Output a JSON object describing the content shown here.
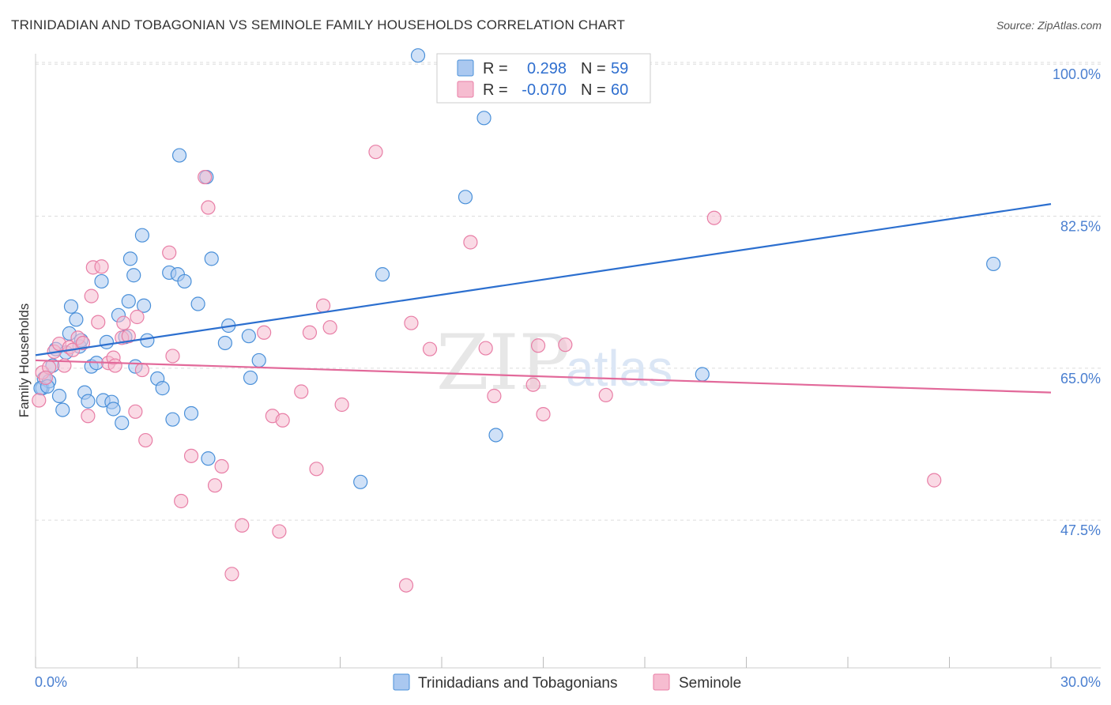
{
  "title": "TRINIDADIAN AND TOBAGONIAN VS SEMINOLE FAMILY HOUSEHOLDS CORRELATION CHART",
  "source": "Source: ZipAtlas.com",
  "watermark": {
    "zip": "ZIP",
    "atlas": "atlas"
  },
  "colors": {
    "blue": "#4a90d9",
    "blue_fill": "#aac8f0",
    "blue_line": "#2c6fcf",
    "pink": "#e87ea6",
    "pink_fill": "#f6bcd0",
    "pink_line": "#e2699a",
    "tick": "#4a7fd0",
    "grid": "#dddddd"
  },
  "legend": {
    "rows": [
      {
        "r_label": "R =",
        "r_value": "0.298",
        "n_label": "N =",
        "n_value": "59",
        "series": "blue"
      },
      {
        "r_label": "R =",
        "r_value": "-0.070",
        "n_label": "N =",
        "n_value": "60",
        "series": "pink"
      }
    ]
  },
  "bottom_legend": [
    "Trinidadians and Tobagonians",
    "Seminole"
  ],
  "chart_data": {
    "type": "scatter",
    "title": "TRINIDADIAN AND TOBAGONIAN VS SEMINOLE FAMILY HOUSEHOLDS CORRELATION CHART",
    "xlabel": "",
    "ylabel": "Family Households",
    "xlim": [
      0,
      30
    ],
    "ylim": [
      30.5,
      101.2
    ],
    "x_tick_labels": [
      "0.0%",
      "30.0%"
    ],
    "y_ticks": [
      47.5,
      65.0,
      82.5,
      100.0
    ],
    "y_tick_labels": [
      "47.5%",
      "65.0%",
      "82.5%",
      "100.0%"
    ],
    "grid": true,
    "series": [
      {
        "name": "Trinidadians and Tobagonians",
        "color": "blue",
        "trend": {
          "x": [
            0,
            30
          ],
          "y": [
            66.5,
            83.9
          ]
        },
        "points": [
          [
            0.2,
            62.7
          ],
          [
            0.25,
            63.8
          ],
          [
            0.4,
            63.5
          ],
          [
            0.5,
            65.3
          ],
          [
            0.6,
            67.2
          ],
          [
            0.7,
            61.8
          ],
          [
            0.8,
            60.2
          ],
          [
            0.9,
            66.8
          ],
          [
            1.0,
            69.0
          ],
          [
            1.05,
            72.1
          ],
          [
            1.2,
            70.6
          ],
          [
            1.3,
            67.5
          ],
          [
            1.35,
            68.2
          ],
          [
            1.45,
            62.2
          ],
          [
            1.55,
            61.2
          ],
          [
            1.65,
            65.2
          ],
          [
            1.8,
            65.6
          ],
          [
            1.95,
            75.0
          ],
          [
            2.0,
            61.3
          ],
          [
            2.1,
            68.0
          ],
          [
            2.25,
            61.1
          ],
          [
            2.3,
            60.3
          ],
          [
            2.45,
            71.1
          ],
          [
            2.55,
            58.7
          ],
          [
            2.65,
            68.6
          ],
          [
            2.75,
            72.7
          ],
          [
            2.8,
            77.6
          ],
          [
            2.9,
            75.7
          ],
          [
            2.95,
            65.2
          ],
          [
            3.15,
            80.3
          ],
          [
            3.2,
            72.2
          ],
          [
            3.3,
            68.2
          ],
          [
            3.6,
            63.8
          ],
          [
            3.75,
            62.7
          ],
          [
            3.95,
            76.0
          ],
          [
            4.05,
            59.1
          ],
          [
            4.2,
            75.8
          ],
          [
            4.25,
            89.5
          ],
          [
            4.4,
            75.0
          ],
          [
            4.6,
            59.8
          ],
          [
            4.8,
            72.4
          ],
          [
            5.05,
            87.0
          ],
          [
            5.1,
            54.6
          ],
          [
            5.2,
            77.6
          ],
          [
            5.6,
            67.9
          ],
          [
            5.7,
            69.9
          ],
          [
            6.3,
            68.7
          ],
          [
            6.35,
            63.9
          ],
          [
            6.6,
            65.9
          ],
          [
            9.6,
            51.9
          ],
          [
            10.25,
            75.8
          ],
          [
            11.3,
            101.0
          ],
          [
            12.7,
            84.7
          ],
          [
            13.25,
            93.8
          ],
          [
            13.6,
            57.3
          ],
          [
            19.7,
            64.3
          ],
          [
            28.3,
            77.0
          ],
          [
            0.15,
            62.7
          ],
          [
            0.35,
            62.9
          ]
        ]
      },
      {
        "name": "Seminole",
        "color": "pink",
        "trend": {
          "x": [
            0,
            30
          ],
          "y": [
            65.9,
            62.2
          ]
        },
        "points": [
          [
            0.1,
            61.3
          ],
          [
            0.2,
            64.5
          ],
          [
            0.4,
            65.1
          ],
          [
            0.55,
            66.9
          ],
          [
            0.7,
            67.8
          ],
          [
            0.85,
            65.3
          ],
          [
            1.0,
            67.4
          ],
          [
            1.1,
            67.1
          ],
          [
            1.25,
            68.5
          ],
          [
            1.4,
            67.9
          ],
          [
            1.55,
            59.5
          ],
          [
            1.65,
            73.3
          ],
          [
            1.7,
            76.6
          ],
          [
            1.85,
            70.3
          ],
          [
            1.95,
            76.7
          ],
          [
            2.15,
            65.6
          ],
          [
            2.3,
            66.2
          ],
          [
            2.35,
            65.3
          ],
          [
            2.55,
            68.5
          ],
          [
            2.6,
            70.2
          ],
          [
            2.75,
            68.7
          ],
          [
            2.95,
            60.0
          ],
          [
            3.0,
            70.9
          ],
          [
            3.15,
            64.8
          ],
          [
            3.25,
            56.7
          ],
          [
            3.95,
            78.3
          ],
          [
            4.05,
            66.4
          ],
          [
            4.3,
            49.7
          ],
          [
            4.6,
            54.9
          ],
          [
            5.0,
            87.0
          ],
          [
            5.1,
            83.5
          ],
          [
            5.3,
            51.5
          ],
          [
            5.5,
            53.7
          ],
          [
            5.8,
            41.3
          ],
          [
            6.1,
            46.9
          ],
          [
            6.75,
            69.1
          ],
          [
            7.0,
            59.5
          ],
          [
            7.2,
            46.2
          ],
          [
            7.3,
            59.0
          ],
          [
            7.85,
            62.3
          ],
          [
            8.1,
            69.1
          ],
          [
            8.3,
            53.4
          ],
          [
            8.5,
            72.2
          ],
          [
            8.7,
            69.7
          ],
          [
            9.05,
            60.8
          ],
          [
            10.05,
            89.9
          ],
          [
            10.95,
            40.0
          ],
          [
            11.1,
            70.2
          ],
          [
            11.65,
            67.2
          ],
          [
            12.85,
            79.5
          ],
          [
            13.3,
            67.3
          ],
          [
            13.55,
            61.8
          ],
          [
            14.7,
            63.1
          ],
          [
            14.85,
            67.6
          ],
          [
            15.0,
            59.7
          ],
          [
            15.65,
            67.7
          ],
          [
            16.85,
            61.9
          ],
          [
            20.05,
            82.3
          ],
          [
            26.55,
            52.1
          ],
          [
            0.3,
            63.9
          ]
        ]
      }
    ]
  }
}
